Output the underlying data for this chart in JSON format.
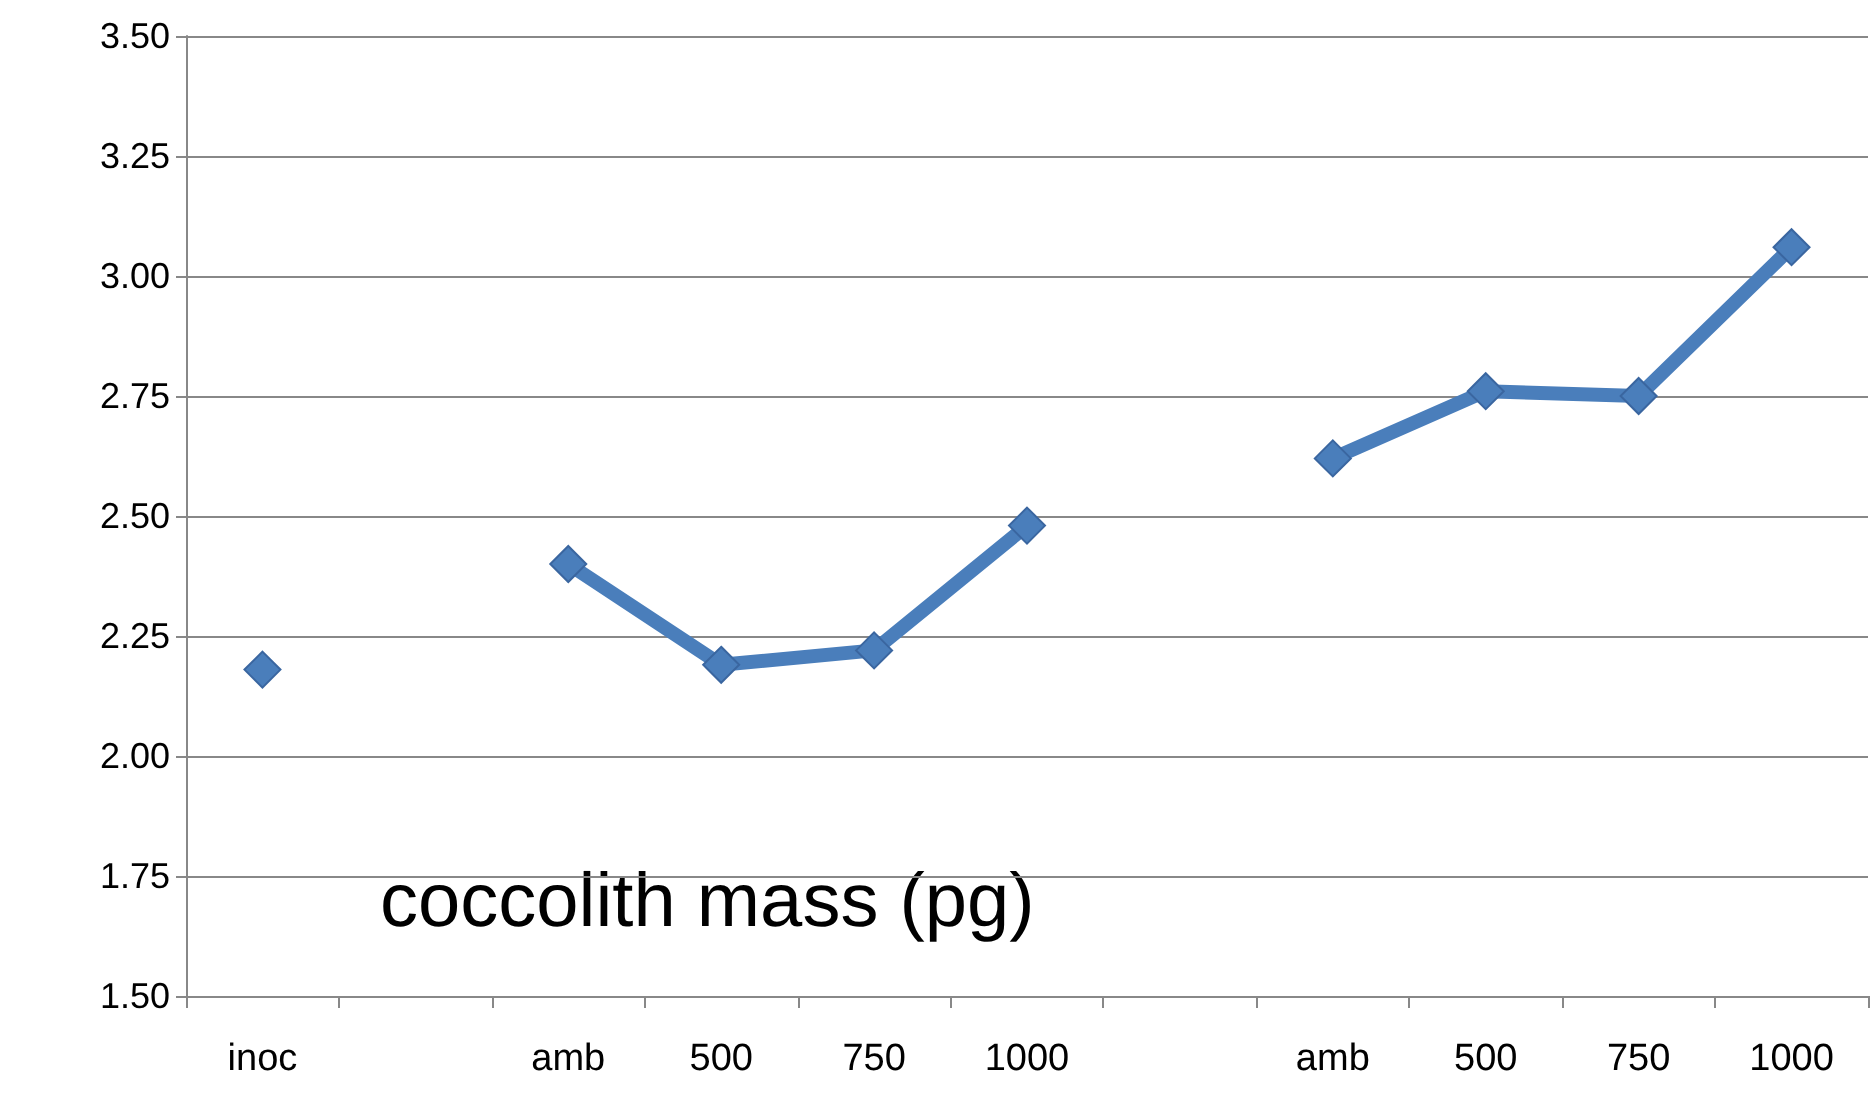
{
  "chart_data": {
    "type": "line",
    "categories": [
      "inoc",
      null,
      "amb",
      "500",
      "750",
      "1000",
      null,
      "amb",
      "500",
      "750",
      "1000"
    ],
    "series": [
      {
        "color": "#4a7ebb",
        "values": [
          2.18,
          null,
          2.4,
          2.19,
          2.22,
          2.48,
          null,
          2.62,
          2.76,
          2.75,
          3.06
        ]
      }
    ],
    "ylim": [
      1.5,
      3.5
    ],
    "yticks": [
      {
        "value": 1.5,
        "label": "1.50"
      },
      1.75,
      {
        "value": 2,
        "label": "2.00"
      },
      2.25,
      {
        "value": 2.5,
        "label": "2.50"
      },
      2.75,
      {
        "value": 3,
        "label": "3.00"
      },
      3.25,
      {
        "value": 3.5,
        "label": "3.50"
      }
    ],
    "grid": "y",
    "marker": "diamond",
    "annotations": [
      "coccolith mass (pg)"
    ]
  }
}
